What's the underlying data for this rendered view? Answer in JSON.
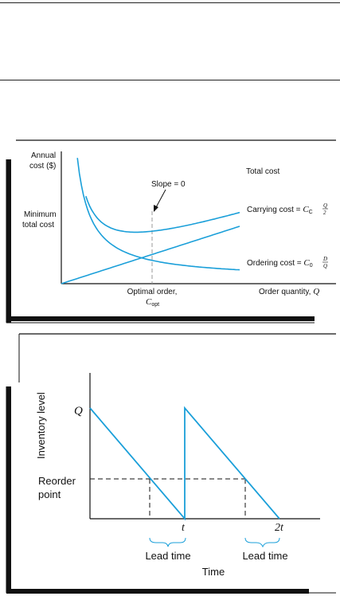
{
  "chart_data": [
    {
      "type": "line",
      "ylabel": "Annual cost ($)",
      "xlabel": "Order quantity, Q",
      "y_axis_annotation": "Minimum total cost",
      "x_axis_annotation": {
        "line1": "Optimal order,",
        "symbol": "C",
        "subscript": "opt"
      },
      "series": [
        {
          "name": "Total cost",
          "curve": "C_C*Q/2 + C_0*D/Q"
        },
        {
          "name": "Carrying cost",
          "formula_prefix": "Carrying cost = ",
          "symbol": "C",
          "subscript": "C",
          "num": "Q",
          "den": "2"
        },
        {
          "name": "Ordering cost",
          "formula_prefix": "Ordering cost = ",
          "symbol": "C",
          "subscript": "0",
          "num": "D",
          "den": "Q"
        }
      ],
      "annotation": "Slope = 0",
      "colors": {
        "curve": "#1a9fd9",
        "axis": "#111111",
        "guide": "#999999",
        "shadow": "#111111"
      }
    },
    {
      "type": "line",
      "ylabel": "Inventory level",
      "xlabel": "Time",
      "y_ticks": [
        "Q",
        "Reorder point"
      ],
      "reorder_label_line1": "Reorder",
      "reorder_label_line2": "point",
      "x_ticks": [
        "t",
        "2t"
      ],
      "series_values": {
        "x": [
          0,
          1,
          1,
          2
        ],
        "y": [
          1,
          0,
          1,
          0
        ]
      },
      "reorder_level": 0.38,
      "lead_time_label": "Lead time",
      "colors": {
        "curve": "#1a9fd9",
        "axis": "#111111",
        "dashes": "#111111",
        "shadow": "#111111"
      }
    }
  ]
}
